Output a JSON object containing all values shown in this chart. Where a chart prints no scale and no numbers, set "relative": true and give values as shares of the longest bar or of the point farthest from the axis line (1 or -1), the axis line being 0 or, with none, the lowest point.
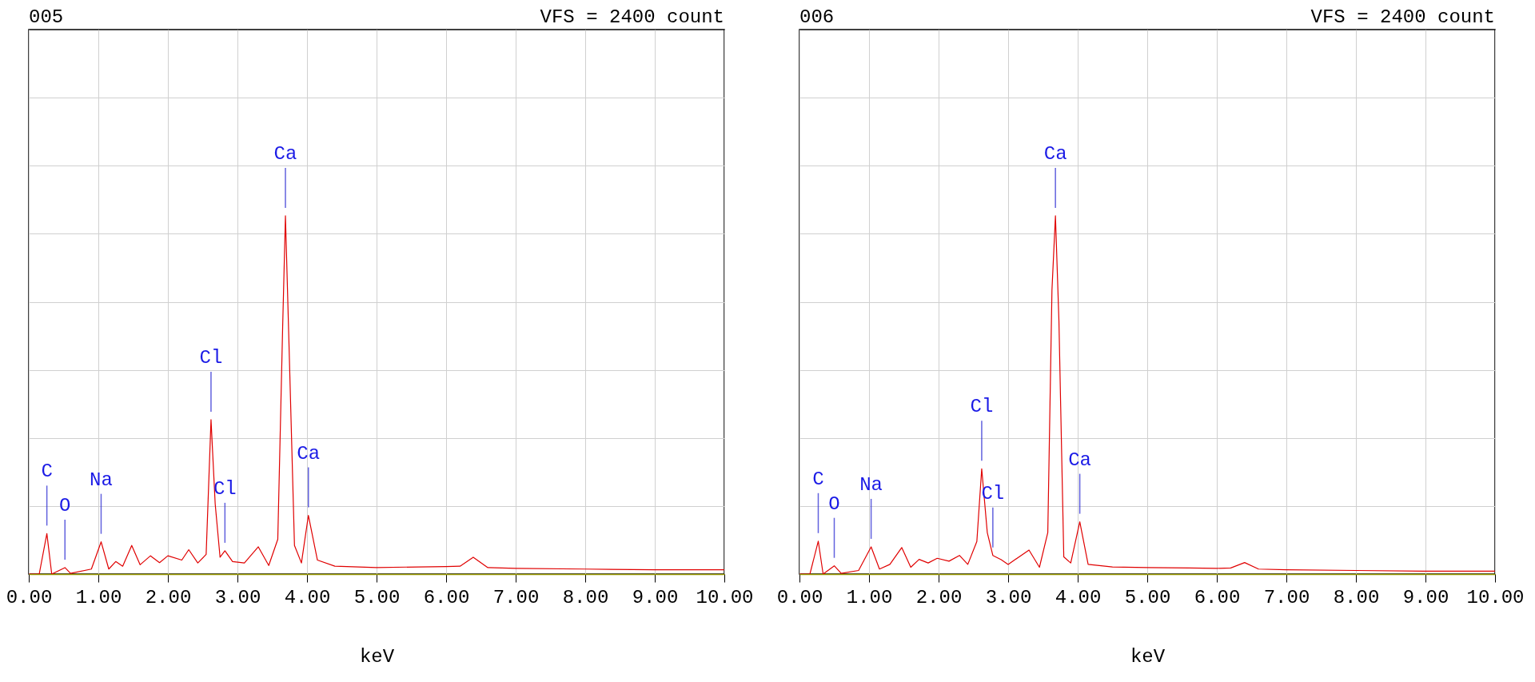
{
  "chart_data": [
    {
      "type": "line",
      "title": "005",
      "xlabel": "keV",
      "relative": true,
      "grid": true,
      "tick_labels": "x",
      "xlim": [
        0,
        10
      ],
      "xticks": [
        {
          "value": 0,
          "label": "0.00"
        },
        {
          "value": 1,
          "label": "1.00"
        },
        {
          "value": 2,
          "label": "2.00"
        },
        {
          "value": 3,
          "label": "3.00"
        },
        {
          "value": 4,
          "label": "4.00"
        },
        {
          "value": 5,
          "label": "5.00"
        },
        {
          "value": 6,
          "label": "6.00"
        },
        {
          "value": 7,
          "label": "7.00"
        },
        {
          "value": 8,
          "label": "8.00"
        },
        {
          "value": 9,
          "label": "9.00"
        },
        {
          "value": 10,
          "label": "10.00"
        }
      ],
      "x": [
        0,
        0.15,
        0.26,
        0.33,
        0.52,
        0.6,
        0.9,
        1.04,
        1.15,
        1.25,
        1.35,
        1.48,
        1.6,
        1.75,
        1.88,
        2.0,
        2.2,
        2.3,
        2.43,
        2.55,
        2.62,
        2.68,
        2.75,
        2.82,
        2.93,
        3.1,
        3.3,
        3.45,
        3.58,
        3.65,
        3.69,
        3.74,
        3.82,
        3.92,
        4.02,
        4.15,
        4.4,
        5.0,
        5.6,
        6.0,
        6.2,
        6.39,
        6.6,
        7.0,
        8.0,
        9.0,
        10.0
      ],
      "series": [
        {
          "color": "#e00000",
          "values": [
            0,
            0,
            0.113,
            0,
            0.018,
            0.002,
            0.014,
            0.09,
            0.014,
            0.035,
            0.022,
            0.08,
            0.026,
            0.051,
            0.032,
            0.051,
            0.039,
            0.068,
            0.031,
            0.055,
            0.431,
            0.196,
            0.047,
            0.065,
            0.035,
            0.031,
            0.076,
            0.024,
            0.097,
            0.69,
            1,
            0.65,
            0.08,
            0.031,
            0.164,
            0.039,
            0.022,
            0.018,
            0.02,
            0.021,
            0.022,
            0.047,
            0.018,
            0.016,
            0.014,
            0.012,
            0.012
          ]
        }
      ],
      "annotations": [
        {
          "text": "C",
          "x": 0.26,
          "y": 0.113
        },
        {
          "text": "O",
          "x": 0.52,
          "y": 0.018
        },
        {
          "text": "Na",
          "x": 1.04,
          "y": 0.09
        },
        {
          "text": "Cl",
          "x": 2.62,
          "y": 0.431
        },
        {
          "text": "Cl",
          "x": 2.82,
          "y": 0.065
        },
        {
          "text": "Ca",
          "x": 3.69,
          "y": 1
        },
        {
          "text": "Ca",
          "x": 4.02,
          "y": 0.164
        },
        "VFS = 2400 count"
      ]
    },
    {
      "type": "line",
      "title": "006",
      "xlabel": "keV",
      "relative": true,
      "grid": true,
      "tick_labels": "x",
      "xlim": [
        0,
        10
      ],
      "xticks": [
        {
          "value": 0,
          "label": "0.00"
        },
        {
          "value": 1,
          "label": "1.00"
        },
        {
          "value": 2,
          "label": "2.00"
        },
        {
          "value": 3,
          "label": "3.00"
        },
        {
          "value": 4,
          "label": "4.00"
        },
        {
          "value": 5,
          "label": "5.00"
        },
        {
          "value": 6,
          "label": "6.00"
        },
        {
          "value": 7,
          "label": "7.00"
        },
        {
          "value": 8,
          "label": "8.00"
        },
        {
          "value": 9,
          "label": "9.00"
        },
        {
          "value": 10,
          "label": "10.00"
        }
      ],
      "x": [
        0,
        0.15,
        0.27,
        0.34,
        0.5,
        0.6,
        0.85,
        1.03,
        1.15,
        1.3,
        1.47,
        1.6,
        1.72,
        1.85,
        1.98,
        2.15,
        2.3,
        2.42,
        2.55,
        2.62,
        2.7,
        2.78,
        2.9,
        3.0,
        3.3,
        3.45,
        3.57,
        3.63,
        3.68,
        3.73,
        3.8,
        3.9,
        4.03,
        4.15,
        4.5,
        5.0,
        5.6,
        6.0,
        6.2,
        6.4,
        6.6,
        7.0,
        8.0,
        9.0,
        10.0
      ],
      "series": [
        {
          "color": "#e00000",
          "values": [
            0,
            0,
            0.092,
            0,
            0.023,
            0.002,
            0.01,
            0.076,
            0.014,
            0.027,
            0.074,
            0.019,
            0.041,
            0.031,
            0.044,
            0.036,
            0.052,
            0.027,
            0.091,
            0.294,
            0.116,
            0.052,
            0.04,
            0.027,
            0.067,
            0.019,
            0.116,
            0.793,
            1,
            0.708,
            0.048,
            0.031,
            0.146,
            0.027,
            0.02,
            0.018,
            0.017,
            0.016,
            0.017,
            0.032,
            0.014,
            0.012,
            0.01,
            0.008,
            0.008
          ]
        }
      ],
      "annotations": [
        {
          "text": "C",
          "x": 0.27,
          "y": 0.092
        },
        {
          "text": "O",
          "x": 0.5,
          "y": 0.023
        },
        {
          "text": "Na",
          "x": 1.03,
          "y": 0.076
        },
        {
          "text": "Cl",
          "x": 2.62,
          "y": 0.294
        },
        {
          "text": "Cl",
          "x": 2.78,
          "y": 0.052
        },
        {
          "text": "Ca",
          "x": 3.68,
          "y": 1
        },
        {
          "text": "Ca",
          "x": 4.03,
          "y": 0.146
        },
        "VFS = 2400 count"
      ]
    }
  ]
}
